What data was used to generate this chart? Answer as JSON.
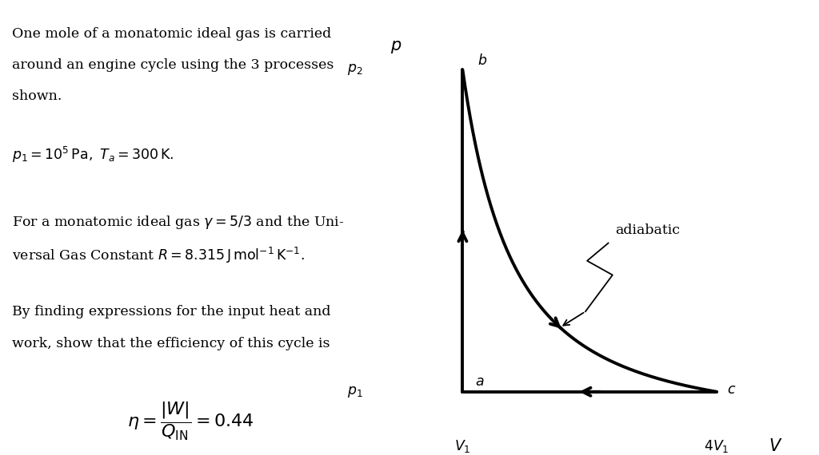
{
  "bg_color": "#ffffff",
  "text_color": "#000000",
  "line_color": "#000000",
  "line_width": 2.8,
  "fig_width": 10.24,
  "fig_height": 5.7,
  "V1": 1.0,
  "V_c": 4.0,
  "p1": 1.0,
  "gamma": 1.6667,
  "text_lines_top": [
    "One mole of a monatomic ideal gas is carried",
    "around an engine cycle using the 3 processes",
    "shown."
  ],
  "text_line_eq": "$p_1 = 10^5\\,\\mathrm{Pa},\\ T_a = 300\\,\\mathrm{K}.$",
  "text_lines_gas1": "For a monatomic ideal gas $\\gamma = 5/3$ and the Uni-",
  "text_lines_gas2": "versal Gas Constant $R = 8.315\\,\\mathrm{J\\,mol^{-1}\\,K^{-1}}$.",
  "text_lines_find1": "By finding expressions for the input heat and",
  "text_lines_find2": "work, show that the efficiency of this cycle is",
  "text_eta": "$\\eta = \\dfrac{|W|}{Q_{\\mathrm{IN}}} = 0.44$"
}
